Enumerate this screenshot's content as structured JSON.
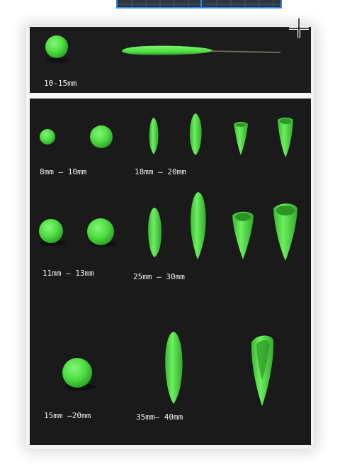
{
  "colors": {
    "clay_green": "#4fe043",
    "board_black": "#1c1c1c",
    "frame_gray": "#f4f4f4",
    "chalk": "#f0f0f0",
    "accent_blue": "#2f86f2"
  },
  "icons": {
    "cursor": "crosshair-cursor-icon"
  },
  "labels": {
    "top_ball": "10-15mm",
    "row1_balls": "8mm — 10mm",
    "row1_cones": "18mm — 20mm",
    "row2_balls": "11mm — 13mm",
    "row2_cones": "25mm — 30mm",
    "row3_ball": "15mm —20mm",
    "row3_cones": "35mm— 40mm"
  }
}
